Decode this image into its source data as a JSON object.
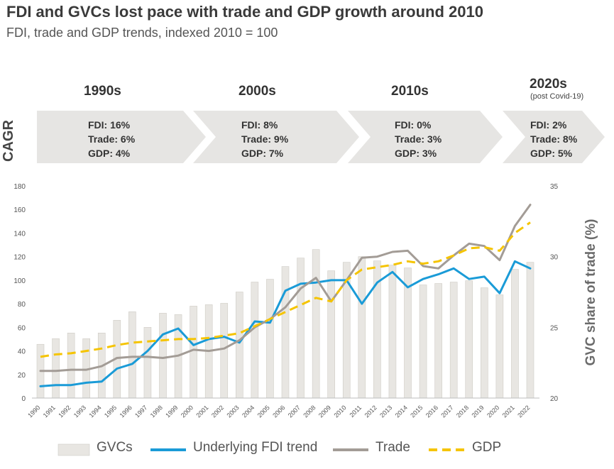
{
  "header": {
    "title": "FDI and GVCs lost pace with trade and GDP growth around 2010",
    "subtitle": "FDI, trade and GDP trends, indexed 2010 = 100"
  },
  "cagr": {
    "label": "CAGR",
    "periods": [
      {
        "decade": "1990s",
        "note": "",
        "fdi": "FDI: 16%",
        "trade": "Trade: 6%",
        "gdp": "GDP: 4%"
      },
      {
        "decade": "2000s",
        "note": "",
        "fdi": "FDI: 8%",
        "trade": "Trade: 9%",
        "gdp": "GDP: 7%"
      },
      {
        "decade": "2010s",
        "note": "",
        "fdi": "FDI: 0%",
        "trade": "Trade: 3%",
        "gdp": "GDP: 3%"
      },
      {
        "decade": "2020s",
        "note": "(post Covid-19)",
        "fdi": "FDI: 2%",
        "trade": "Trade: 8%",
        "gdp": "GDP: 5%"
      }
    ]
  },
  "colors": {
    "gvc": "#e8e6e2",
    "gvc_stroke": "#cfccc6",
    "fdi": "#1a9bd7",
    "trade": "#a39c96",
    "gdp": "#f5c400",
    "arrow": "#e6e5e3"
  },
  "chart_data": {
    "type": "line",
    "x": [
      "1990",
      "1991",
      "1992",
      "1993",
      "1994",
      "1995",
      "1996",
      "1997",
      "1998",
      "1999",
      "2000",
      "2001",
      "2002",
      "2003",
      "2004",
      "2005",
      "2006",
      "2007",
      "2008",
      "2009",
      "2010",
      "2011",
      "2012",
      "2013",
      "2014",
      "2015",
      "2016",
      "2017",
      "2018",
      "2019",
      "2020",
      "2021",
      "2022"
    ],
    "y_left": {
      "ticks": [
        "0",
        "20",
        "40",
        "60",
        "80",
        "100",
        "120",
        "140",
        "160",
        "180"
      ],
      "ylim": [
        0,
        180
      ]
    },
    "y_right": {
      "label": "GVC share of trade (%)",
      "ticks": [
        "20",
        "25",
        "30",
        "35"
      ],
      "ylim": [
        20,
        35
      ]
    },
    "series": [
      {
        "name": "GVCs",
        "kind": "bar",
        "axis": "right",
        "values": [
          23.8,
          24.2,
          24.6,
          24.2,
          24.6,
          25.5,
          26.1,
          25.0,
          26.0,
          25.9,
          26.5,
          26.6,
          26.7,
          27.5,
          28.2,
          28.4,
          29.3,
          29.9,
          30.5,
          29.0,
          29.6,
          30.0,
          29.7,
          29.4,
          29.2,
          28.0,
          28.1,
          28.2,
          28.3,
          27.8,
          27.3,
          29.1,
          29.6
        ]
      },
      {
        "name": "Underlying FDI trend",
        "kind": "line",
        "axis": "left",
        "color_key": "fdi",
        "values": [
          10,
          11,
          11,
          13,
          14,
          25,
          29,
          40,
          54,
          59,
          45,
          50,
          52,
          47,
          65,
          64,
          91,
          97,
          98,
          100,
          100,
          80,
          98,
          107,
          94,
          101,
          105,
          110,
          101,
          103,
          89,
          116,
          110
        ]
      },
      {
        "name": "Trade",
        "kind": "line",
        "axis": "left",
        "color_key": "trade",
        "values": [
          23,
          23,
          24,
          24,
          27,
          34,
          35,
          35,
          34,
          36,
          41,
          40,
          42,
          49,
          60,
          67,
          77,
          93,
          102,
          82,
          100,
          119,
          120,
          124,
          125,
          112,
          110,
          121,
          131,
          129,
          117,
          146,
          164
        ]
      },
      {
        "name": "GDP",
        "kind": "dashed",
        "axis": "left",
        "color_key": "gdp",
        "values": [
          35,
          37,
          38,
          40,
          42,
          45,
          47,
          48,
          49,
          50,
          50,
          51,
          53,
          55,
          61,
          67,
          73,
          79,
          85,
          82,
          100,
          109,
          111,
          113,
          116,
          114,
          116,
          121,
          127,
          128,
          125,
          140,
          149
        ]
      }
    ]
  }
}
